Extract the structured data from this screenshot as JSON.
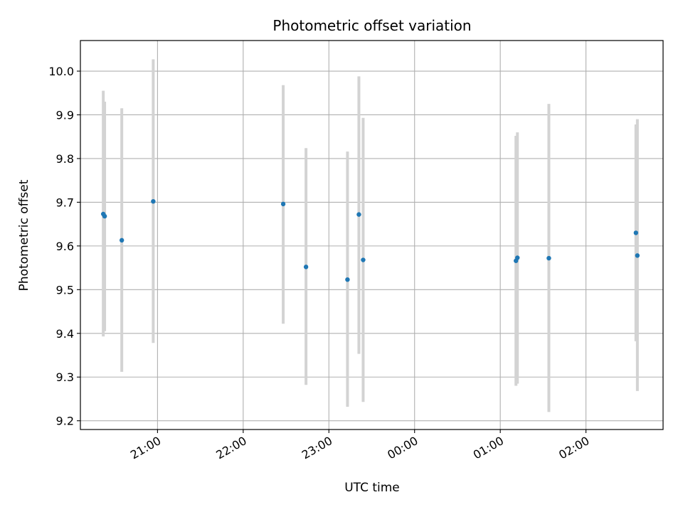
{
  "chart_data": {
    "type": "scatter",
    "title": "Photometric offset variation",
    "xlabel": "UTC time",
    "ylabel": "Photometric offset",
    "x_unit": "hours",
    "xlim": [
      20.1,
      26.9
    ],
    "ylim": [
      9.18,
      10.07
    ],
    "x_ticks": [
      {
        "value": 21,
        "label": "21:00"
      },
      {
        "value": 22,
        "label": "22:00"
      },
      {
        "value": 23,
        "label": "23:00"
      },
      {
        "value": 24,
        "label": "00:00"
      },
      {
        "value": 25,
        "label": "01:00"
      },
      {
        "value": 26,
        "label": "02:00"
      }
    ],
    "y_ticks": [
      {
        "value": 9.2,
        "label": "9.2"
      },
      {
        "value": 9.3,
        "label": "9.3"
      },
      {
        "value": 9.4,
        "label": "9.4"
      },
      {
        "value": 9.5,
        "label": "9.5"
      },
      {
        "value": 9.6,
        "label": "9.6"
      },
      {
        "value": 9.7,
        "label": "9.7"
      },
      {
        "value": 9.8,
        "label": "9.8"
      },
      {
        "value": 9.9,
        "label": "9.9"
      },
      {
        "value": 10.0,
        "label": "10.0"
      }
    ],
    "grid": true,
    "colors": {
      "marker": "#1f77b4",
      "errorbar": "#d3d3d3",
      "grid": "#b0b0b0"
    },
    "points": [
      {
        "time": "20:22",
        "x": 20.367,
        "y": 9.673,
        "err_low": 9.393,
        "err_high": 9.955
      },
      {
        "time": "20:23",
        "x": 20.383,
        "y": 9.668,
        "err_low": 9.405,
        "err_high": 9.93
      },
      {
        "time": "20:35",
        "x": 20.583,
        "y": 9.613,
        "err_low": 9.312,
        "err_high": 9.915
      },
      {
        "time": "20:57",
        "x": 20.95,
        "y": 9.702,
        "err_low": 9.378,
        "err_high": 10.027
      },
      {
        "time": "22:28",
        "x": 22.467,
        "y": 9.696,
        "err_low": 9.422,
        "err_high": 9.968
      },
      {
        "time": "22:44",
        "x": 22.733,
        "y": 9.552,
        "err_low": 9.282,
        "err_high": 9.824
      },
      {
        "time": "23:13",
        "x": 23.217,
        "y": 9.523,
        "err_low": 9.232,
        "err_high": 9.816
      },
      {
        "time": "23:21",
        "x": 23.35,
        "y": 9.672,
        "err_low": 9.353,
        "err_high": 9.988
      },
      {
        "time": "23:24",
        "x": 23.4,
        "y": 9.568,
        "err_low": 9.243,
        "err_high": 9.893
      },
      {
        "time": "01:11",
        "x": 25.183,
        "y": 9.566,
        "err_low": 9.28,
        "err_high": 9.852
      },
      {
        "time": "01:12",
        "x": 25.2,
        "y": 9.573,
        "err_low": 9.285,
        "err_high": 9.86
      },
      {
        "time": "01:34",
        "x": 25.567,
        "y": 9.572,
        "err_low": 9.22,
        "err_high": 9.925
      },
      {
        "time": "02:35",
        "x": 26.583,
        "y": 9.63,
        "err_low": 9.382,
        "err_high": 9.878
      },
      {
        "time": "02:36",
        "x": 26.6,
        "y": 9.578,
        "err_low": 9.268,
        "err_high": 9.89
      }
    ]
  }
}
